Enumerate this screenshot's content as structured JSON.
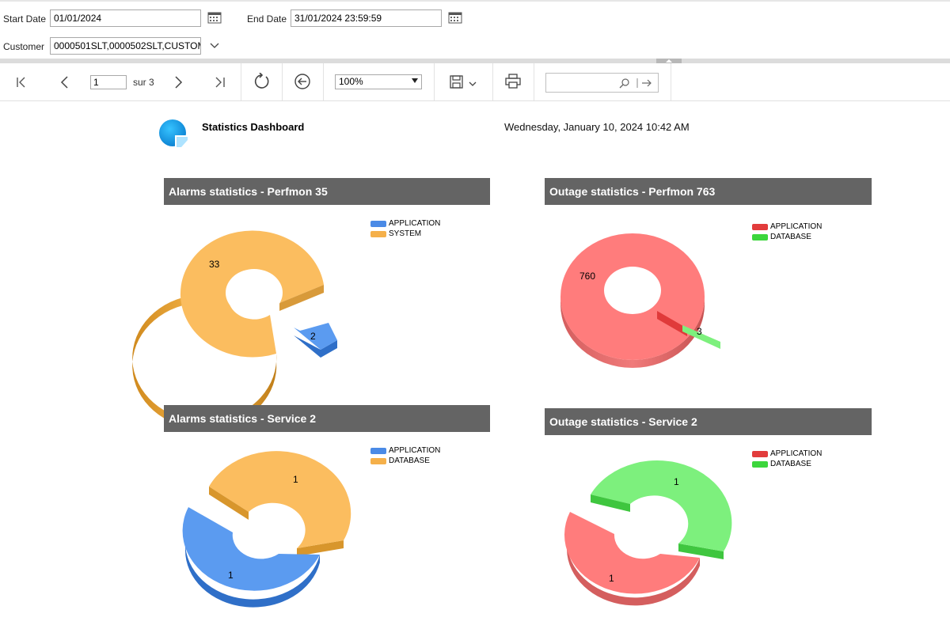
{
  "params": {
    "start_date_label": "Start Date",
    "start_date_value": "01/01/2024",
    "end_date_label": "End Date",
    "end_date_value": "31/01/2024 23:59:59",
    "customer_label": "Customer",
    "customer_value": "0000501SLT,0000502SLT,CUSTOM"
  },
  "toolbar": {
    "page_value": "1",
    "page_total_text": "sur 3",
    "zoom_value": "100%"
  },
  "report": {
    "title": "Statistics Dashboard",
    "datetime": "Wednesday, January 10, 2024 10:42 AM"
  },
  "colors": {
    "application_blue": "#5b9bf0",
    "system_orange": "#fbbd5f",
    "application_red": "#ff7c7c",
    "database_green": "#7df07d",
    "header_gray": "#646464"
  },
  "panels": [
    {
      "title": "Alarms statistics - Perfmon 35",
      "legend": [
        {
          "label": "APPLICATION",
          "color": "#4a8ae6"
        },
        {
          "label": "SYSTEM",
          "color": "#f5b04a"
        }
      ],
      "slices": [
        {
          "label": "APPLICATION",
          "value": 2,
          "value_text": "2"
        },
        {
          "label": "SYSTEM",
          "value": 33,
          "value_text": "33"
        }
      ]
    },
    {
      "title": "Outage statistics - Perfmon 763",
      "legend": [
        {
          "label": "APPLICATION",
          "color": "#e23c3c"
        },
        {
          "label": "DATABASE",
          "color": "#3cd63c"
        }
      ],
      "slices": [
        {
          "label": "APPLICATION",
          "value": 760,
          "value_text": "760"
        },
        {
          "label": "DATABASE",
          "value": 3,
          "value_text": "3"
        }
      ]
    },
    {
      "title": "Alarms statistics - Service 2",
      "legend": [
        {
          "label": "APPLICATION",
          "color": "#4a8ae6"
        },
        {
          "label": "DATABASE",
          "color": "#f5b04a"
        }
      ],
      "slices": [
        {
          "label": "APPLICATION",
          "value": 1,
          "value_text": "1"
        },
        {
          "label": "DATABASE",
          "value": 1,
          "value_text": "1"
        }
      ]
    },
    {
      "title": "Outage statistics - Service 2",
      "legend": [
        {
          "label": "APPLICATION",
          "color": "#e23c3c"
        },
        {
          "label": "DATABASE",
          "color": "#3cd63c"
        }
      ],
      "slices": [
        {
          "label": "APPLICATION",
          "value": 1,
          "value_text": "1"
        },
        {
          "label": "DATABASE",
          "value": 1,
          "value_text": "1"
        }
      ]
    }
  ]
}
